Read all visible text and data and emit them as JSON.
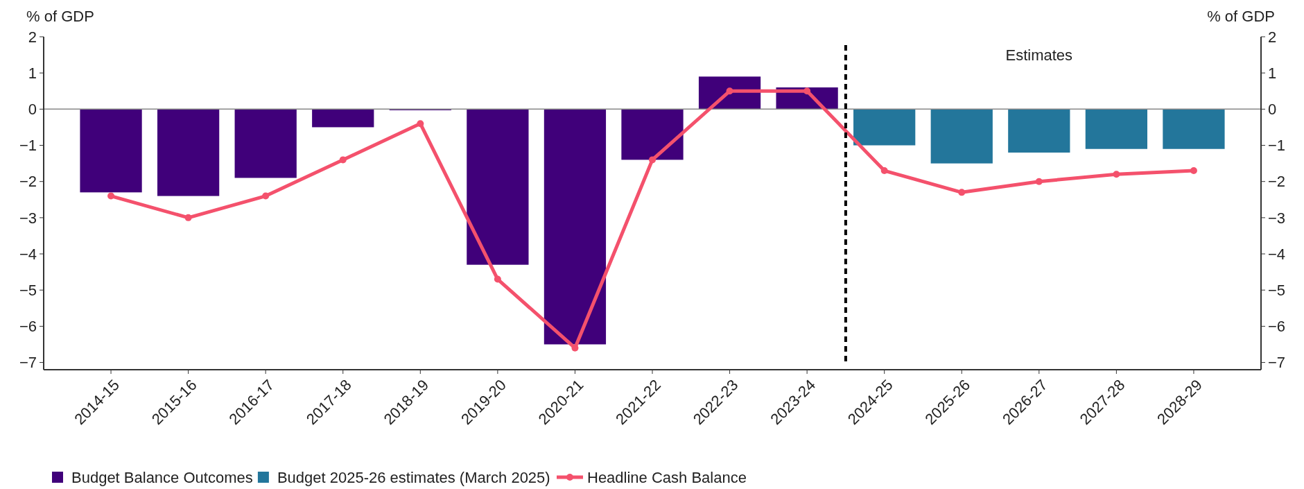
{
  "chart_data": {
    "type": "bar",
    "ylabel": "% of GDP",
    "y2label": "% of GDP",
    "categories": [
      "2014-15",
      "2015-16",
      "2016-17",
      "2017-18",
      "2018-19",
      "2019-20",
      "2020-21",
      "2021-22",
      "2022-23",
      "2023-24",
      "2024-25",
      "2025-26",
      "2026-27",
      "2027-28",
      "2028-29"
    ],
    "series": [
      {
        "name": "Budget Balance Outcomes",
        "color": "#40007a",
        "values": [
          -2.3,
          -2.4,
          -1.9,
          -0.5,
          -0.03,
          -4.3,
          -6.5,
          -1.4,
          0.9,
          0.6,
          null,
          null,
          null,
          null,
          null
        ]
      },
      {
        "name": "Budget 2025-26 estimates (March 2025)",
        "color": "#23769b",
        "values": [
          null,
          null,
          null,
          null,
          null,
          null,
          null,
          null,
          null,
          null,
          -1.0,
          -1.5,
          -1.2,
          -1.1,
          -1.1
        ]
      },
      {
        "name": "Headline Cash Balance",
        "type": "line",
        "color": "#f4516c",
        "marker": "circle",
        "values": [
          -2.4,
          -3.0,
          -2.4,
          -1.4,
          -0.4,
          -4.7,
          -6.6,
          -1.4,
          0.5,
          0.5,
          -1.7,
          -2.3,
          -2.0,
          -1.8,
          -1.7
        ]
      }
    ],
    "ylim": [
      -7.2,
      2
    ],
    "yticks": [
      -7,
      -6,
      -5,
      -4,
      -3,
      -2,
      -1,
      0,
      1,
      2
    ],
    "y2lim": [
      -7.2,
      2
    ],
    "y2ticks": [
      -7,
      -6,
      -5,
      -4,
      -3,
      -2,
      -1,
      0,
      1,
      2
    ],
    "annotations": [
      "Estimates"
    ],
    "ref_lines": [
      {
        "axis": "y",
        "value": 0,
        "color": "#888888"
      }
    ],
    "legend": "bottom"
  }
}
